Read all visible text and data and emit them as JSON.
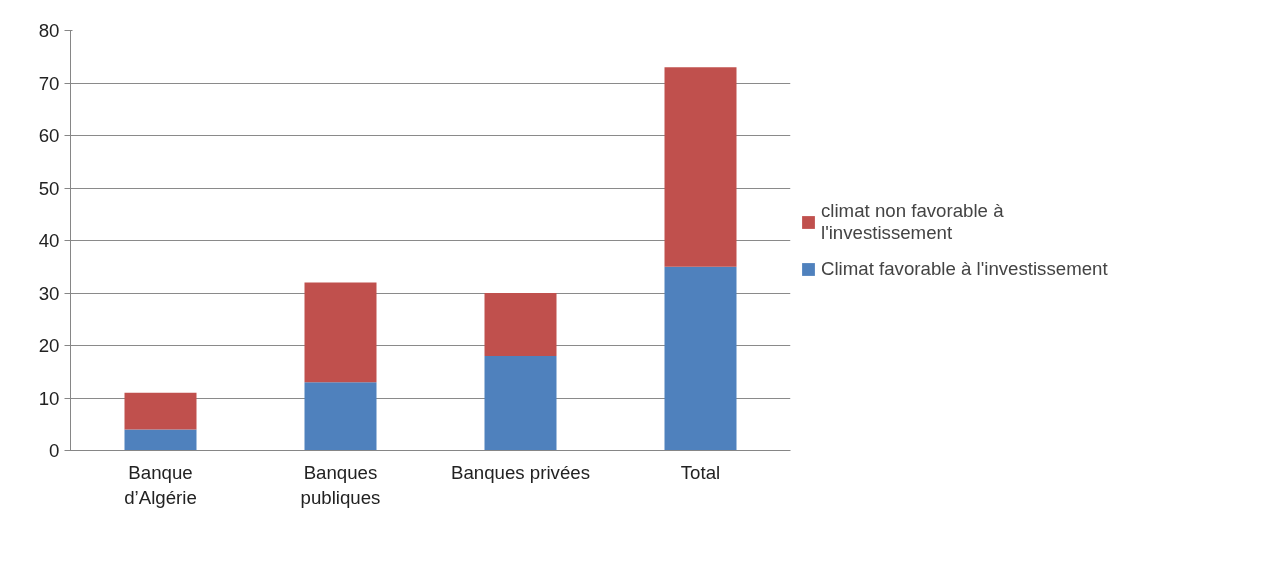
{
  "chart_data": {
    "type": "bar",
    "stacked": true,
    "categories": [
      "Banque\nd’Algérie",
      "Banques\npubliques",
      "Banques privées",
      "Total"
    ],
    "series": [
      {
        "name": "Climat favorable à l'investissement",
        "color": "#4f81bd",
        "values": [
          4,
          13,
          18,
          35
        ]
      },
      {
        "name": "climat non favorable à l'investissement",
        "color": "#c0504d",
        "values": [
          7,
          19,
          12,
          38
        ]
      }
    ],
    "ylim": [
      0,
      80
    ],
    "yticks": [
      0,
      10,
      20,
      30,
      40,
      50,
      60,
      70,
      80
    ],
    "grid": "y",
    "legend": "right"
  }
}
